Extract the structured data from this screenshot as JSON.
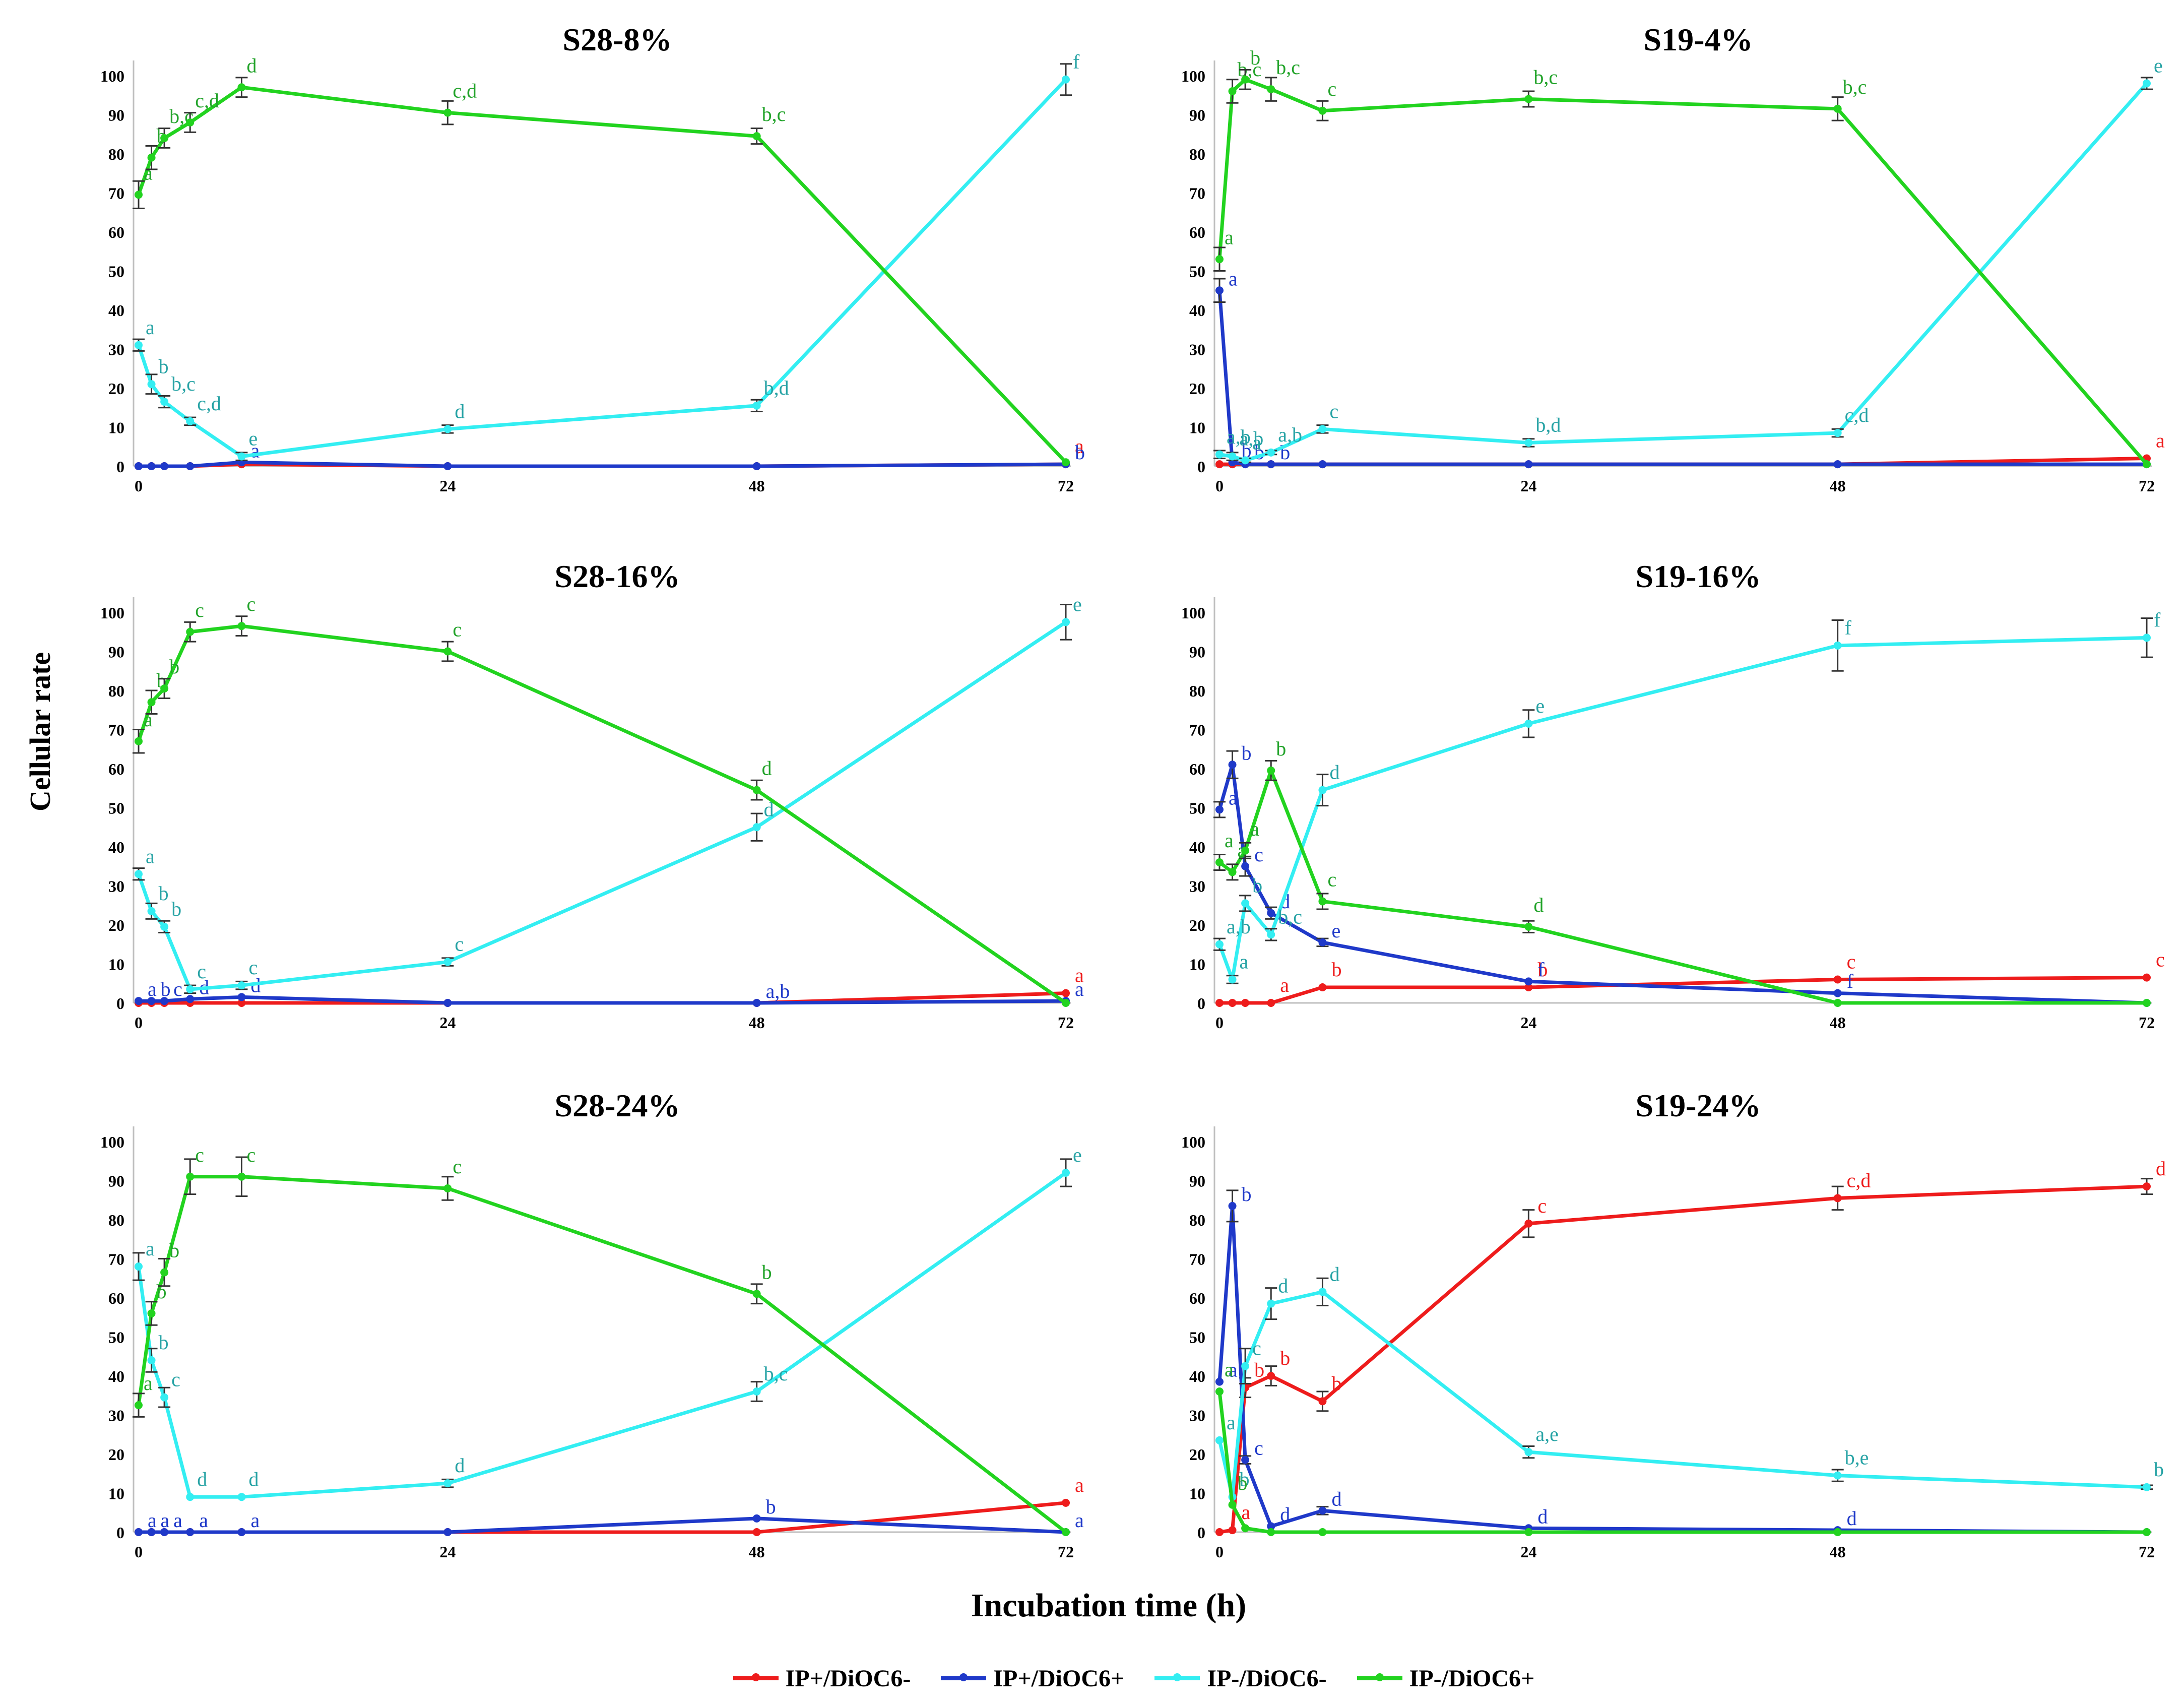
{
  "figure": {
    "y_axis_label": "Cellular rate",
    "x_axis_label": "Incubation time (h)"
  },
  "colors": {
    "IP+/DiOC6-": "#ee1c1c",
    "IP+/DiOC6+": "#1f39c9",
    "IP-/DiOC6-": "#33eef2",
    "IP-/DiOC6+": "#22d31f",
    "letter_IP-/DiOC6-": "#27a3a5",
    "letter_IP-/DiOC6+": "#22a32a"
  },
  "legend": {
    "items": [
      {
        "label": "IP+/DiOC6-",
        "color": "#ee1c1c"
      },
      {
        "label": "IP+/DiOC6+",
        "color": "#1f39c9"
      },
      {
        "label": "IP-/DiOC6-",
        "color": "#33eef2"
      },
      {
        "label": "IP-/DiOC6+",
        "color": "#22d31f"
      }
    ]
  },
  "chart_data": [
    {
      "type": "line",
      "title": "S28-8%",
      "x": [
        0,
        1,
        2,
        4,
        8,
        24,
        48,
        72
      ],
      "x_ticks": [
        0,
        24,
        48,
        72
      ],
      "y_ticks": [
        0,
        10,
        20,
        30,
        40,
        50,
        60,
        70,
        80,
        90,
        100
      ],
      "ylim": [
        0,
        100
      ],
      "series": [
        {
          "name": "IP+/DiOC6-",
          "values": [
            0,
            0,
            0,
            0,
            0.5,
            0,
            0,
            0.5
          ],
          "errors": [
            0,
            0,
            0,
            0,
            0,
            0,
            0,
            0
          ],
          "letters": [
            "",
            "",
            "",
            "",
            "",
            "",
            "",
            "a"
          ]
        },
        {
          "name": "IP+/DiOC6+",
          "values": [
            0,
            0,
            0,
            0,
            1,
            0,
            0,
            0.5
          ],
          "errors": [
            0,
            0,
            0,
            0,
            0,
            0,
            0,
            0
          ],
          "letters": [
            "",
            "",
            "",
            "",
            "a",
            "",
            "",
            "b"
          ]
        },
        {
          "name": "IP-/DiOC6-",
          "values": [
            31,
            21,
            16.5,
            11.5,
            2.5,
            9.5,
            15.5,
            99
          ],
          "errors": [
            1.5,
            2.5,
            1.5,
            1,
            1,
            1,
            1.5,
            4
          ],
          "letters": [
            "a",
            "b",
            "b,c",
            "c,d",
            "e",
            "d",
            "b,d",
            "f"
          ]
        },
        {
          "name": "IP-/DiOC6+",
          "values": [
            69.5,
            79,
            84,
            88,
            97,
            90.5,
            84.5,
            1
          ],
          "errors": [
            3.5,
            3,
            2.5,
            2.5,
            2.5,
            3,
            2,
            0
          ],
          "letters": [
            "a",
            "b",
            "b,c",
            "c,d",
            "d",
            "c,d",
            "b,c",
            ""
          ]
        }
      ]
    },
    {
      "type": "line",
      "title": "S19-4%",
      "x": [
        0,
        1,
        2,
        4,
        8,
        24,
        48,
        72
      ],
      "x_ticks": [
        0,
        24,
        48,
        72
      ],
      "y_ticks": [
        0,
        10,
        20,
        30,
        40,
        50,
        60,
        70,
        80,
        90,
        100
      ],
      "ylim": [
        0,
        100
      ],
      "series": [
        {
          "name": "IP+/DiOC6-",
          "values": [
            0.5,
            0.5,
            0.5,
            0.5,
            0.5,
            0.5,
            0.5,
            2
          ],
          "errors": [
            0,
            0,
            0,
            0,
            0,
            0,
            0,
            0
          ],
          "letters": [
            "",
            "",
            "",
            "",
            "",
            "",
            "",
            "a"
          ]
        },
        {
          "name": "IP+/DiOC6+",
          "values": [
            45,
            1,
            0.5,
            0.5,
            0.5,
            0.5,
            0.5,
            0.5
          ],
          "errors": [
            3,
            0,
            0,
            0,
            0,
            0,
            0,
            0
          ],
          "letters": [
            "a",
            "b",
            "b",
            "b",
            "",
            "",
            "",
            ""
          ]
        },
        {
          "name": "IP-/DiOC6-",
          "values": [
            3,
            2.5,
            1.5,
            3.5,
            9.5,
            6,
            8.5,
            98
          ],
          "errors": [
            1,
            1,
            0.5,
            0.5,
            1,
            1,
            1,
            1.5
          ],
          "letters": [
            "a,b",
            "a,b",
            "a",
            "a,b",
            "c",
            "b,d",
            "c,d",
            "e"
          ]
        },
        {
          "name": "IP-/DiOC6+",
          "values": [
            53,
            96,
            99,
            96.5,
            91,
            94,
            91.5,
            0.5
          ],
          "errors": [
            3,
            3,
            2.5,
            3,
            2.5,
            2,
            3,
            0
          ],
          "letters": [
            "a",
            "b,c",
            "b",
            "b,c",
            "c",
            "b,c",
            "b,c",
            ""
          ]
        }
      ]
    },
    {
      "type": "line",
      "title": "S28-16%",
      "x": [
        0,
        1,
        2,
        4,
        8,
        24,
        48,
        72
      ],
      "x_ticks": [
        0,
        24,
        48,
        72
      ],
      "y_ticks": [
        0,
        10,
        20,
        30,
        40,
        50,
        60,
        70,
        80,
        90,
        100
      ],
      "ylim": [
        0,
        100
      ],
      "series": [
        {
          "name": "IP+/DiOC6-",
          "values": [
            0,
            0,
            0,
            0,
            0,
            0,
            0,
            2.5
          ],
          "errors": [
            0,
            0,
            0,
            0,
            0,
            0,
            0,
            0
          ],
          "letters": [
            "",
            "",
            "",
            "",
            "",
            "",
            "",
            "a"
          ]
        },
        {
          "name": "IP+/DiOC6+",
          "values": [
            0.5,
            0.5,
            0.5,
            1,
            1.5,
            0,
            0,
            0.5
          ],
          "errors": [
            0,
            0,
            0,
            0,
            0,
            0,
            0,
            0
          ],
          "letters": [
            "a",
            "b",
            "c",
            "d",
            "d",
            "",
            "a,b",
            "a"
          ]
        },
        {
          "name": "IP-/DiOC6-",
          "values": [
            33,
            23.5,
            19.5,
            3.5,
            4.5,
            10.5,
            45,
            97.5
          ],
          "errors": [
            1.5,
            2,
            1.5,
            1,
            1,
            1,
            3.5,
            4.5
          ],
          "letters": [
            "a",
            "b",
            "b",
            "c",
            "c",
            "c",
            "d",
            "e"
          ]
        },
        {
          "name": "IP-/DiOC6+",
          "values": [
            67,
            77,
            80.5,
            95,
            96.5,
            90,
            54.5,
            0
          ],
          "errors": [
            3,
            3,
            2.5,
            2.5,
            2.5,
            2.5,
            2.5,
            0
          ],
          "letters": [
            "a",
            "b",
            "b",
            "c",
            "c",
            "c",
            "d",
            ""
          ]
        }
      ]
    },
    {
      "type": "line",
      "title": "S19-16%",
      "x": [
        0,
        1,
        2,
        4,
        8,
        24,
        48,
        72
      ],
      "x_ticks": [
        0,
        24,
        48,
        72
      ],
      "y_ticks": [
        0,
        10,
        20,
        30,
        40,
        50,
        60,
        70,
        80,
        90,
        100
      ],
      "ylim": [
        0,
        100
      ],
      "series": [
        {
          "name": "IP+/DiOC6-",
          "values": [
            0,
            0,
            0,
            0,
            4,
            4,
            6,
            6.5
          ],
          "errors": [
            0,
            0,
            0,
            0,
            0,
            0,
            0,
            0
          ],
          "letters": [
            "",
            "",
            "",
            "a",
            "b",
            "b",
            "c",
            "c"
          ]
        },
        {
          "name": "IP+/DiOC6+",
          "values": [
            49.5,
            61,
            35,
            23,
            15.5,
            5.5,
            2.5,
            0
          ],
          "errors": [
            2,
            3.5,
            2.5,
            1.5,
            1,
            0,
            0,
            0
          ],
          "letters": [
            "a",
            "b",
            "c",
            "d",
            "e",
            "f",
            "f",
            ""
          ]
        },
        {
          "name": "IP-/DiOC6-",
          "values": [
            15,
            6,
            25.5,
            17.5,
            54.5,
            71.5,
            91.5,
            93.5
          ],
          "errors": [
            1.5,
            1,
            2,
            1.5,
            4,
            3.5,
            6.5,
            5
          ],
          "letters": [
            "a,b",
            "a",
            "b",
            "b,c",
            "d",
            "e",
            "f",
            "f"
          ]
        },
        {
          "name": "IP-/DiOC6+",
          "values": [
            36,
            33.5,
            39,
            59.5,
            26,
            19.5,
            0,
            0
          ],
          "errors": [
            2,
            2,
            2,
            2.5,
            2,
            1.5,
            0,
            0
          ],
          "letters": [
            "a",
            "a",
            "a",
            "b",
            "c",
            "d",
            "",
            ""
          ]
        }
      ]
    },
    {
      "type": "line",
      "title": "S28-24%",
      "x": [
        0,
        1,
        2,
        4,
        8,
        24,
        48,
        72
      ],
      "x_ticks": [
        0,
        24,
        48,
        72
      ],
      "y_ticks": [
        0,
        10,
        20,
        30,
        40,
        50,
        60,
        70,
        80,
        90,
        100
      ],
      "ylim": [
        0,
        100
      ],
      "series": [
        {
          "name": "IP+/DiOC6-",
          "values": [
            0,
            0,
            0,
            0,
            0,
            0,
            0,
            7.5
          ],
          "errors": [
            0,
            0,
            0,
            0,
            0,
            0,
            0,
            0
          ],
          "letters": [
            "",
            "",
            "",
            "",
            "",
            "",
            "",
            "a"
          ]
        },
        {
          "name": "IP+/DiOC6+",
          "values": [
            0,
            0,
            0,
            0,
            0,
            0,
            3.5,
            0
          ],
          "errors": [
            0,
            0,
            0,
            0,
            0,
            0,
            0,
            0
          ],
          "letters": [
            "a",
            "a",
            "a",
            "a",
            "a",
            "",
            "b",
            "a"
          ]
        },
        {
          "name": "IP-/DiOC6-",
          "values": [
            68,
            44,
            34.5,
            9,
            9,
            12.5,
            36,
            92
          ],
          "errors": [
            3.5,
            3,
            2.5,
            0,
            0,
            1,
            2.5,
            3.5
          ],
          "letters": [
            "a",
            "b",
            "c",
            "d",
            "d",
            "d",
            "b,c",
            "e"
          ]
        },
        {
          "name": "IP-/DiOC6+",
          "values": [
            32.5,
            56,
            66.5,
            91,
            91,
            88,
            61,
            0
          ],
          "errors": [
            3,
            3,
            3.5,
            4.5,
            5,
            3,
            2.5,
            0
          ],
          "letters": [
            "a",
            "b",
            "b",
            "c",
            "c",
            "c",
            "b",
            ""
          ]
        }
      ]
    },
    {
      "type": "line",
      "title": "S19-24%",
      "x": [
        0,
        1,
        2,
        4,
        8,
        24,
        48,
        72
      ],
      "x_ticks": [
        0,
        24,
        48,
        72
      ],
      "y_ticks": [
        0,
        10,
        20,
        30,
        40,
        50,
        60,
        70,
        80,
        90,
        100
      ],
      "ylim": [
        0,
        100
      ],
      "series": [
        {
          "name": "IP+/DiOC6-",
          "values": [
            0,
            0.5,
            37,
            40,
            33.5,
            79,
            85.5,
            88.5
          ],
          "errors": [
            0,
            0,
            2.5,
            2.5,
            2.5,
            3.5,
            3,
            2
          ],
          "letters": [
            "",
            "a",
            "b",
            "b",
            "b",
            "c",
            "c,d",
            "d"
          ]
        },
        {
          "name": "IP+/DiOC6+",
          "values": [
            38.5,
            83.5,
            18.5,
            1.5,
            5.5,
            1,
            0.5,
            0
          ],
          "errors": [
            0,
            4,
            1,
            0,
            1,
            0,
            0,
            0
          ],
          "letters": [
            "a",
            "b",
            "c",
            "d",
            "d",
            "d",
            "d",
            ""
          ]
        },
        {
          "name": "IP-/DiOC6-",
          "values": [
            23.5,
            9,
            42.5,
            58.5,
            61.5,
            20.5,
            14.5,
            11.5
          ],
          "errors": [
            0,
            0,
            4.5,
            4,
            3.5,
            1.5,
            1.5,
            0.5
          ],
          "letters": [
            "a",
            "b",
            "c",
            "d",
            "d",
            "a,e",
            "b,e",
            "b"
          ]
        },
        {
          "name": "IP-/DiOC6+",
          "values": [
            36,
            7,
            1,
            0,
            0,
            0,
            0,
            0
          ],
          "errors": [
            0,
            0,
            0,
            0,
            0,
            0,
            0,
            0
          ],
          "letters": [
            "a",
            "b",
            "",
            "",
            "",
            "",
            "",
            ""
          ]
        }
      ]
    }
  ]
}
